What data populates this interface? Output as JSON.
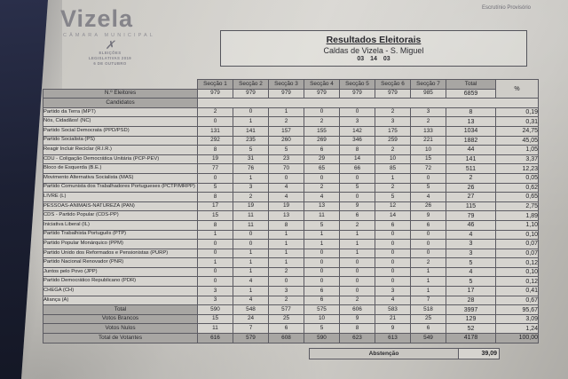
{
  "photo": {
    "corner_note": "Escrutínio Provisório"
  },
  "logo": {
    "name": "Vizela",
    "subtitle": "CÂMARA MUNICIPAL",
    "emblem_lines": [
      "ELEIÇÕES",
      "LEGISLATIVAS 2019",
      "6 DE OUTUBRO"
    ]
  },
  "icons": {
    "elections_emblem": "✗"
  },
  "header": {
    "title": "Resultados Eleitorais",
    "subtitle": "Caldas de Vizela - S. Miguel",
    "code": "03 14 03"
  },
  "table": {
    "columns": [
      "Secção 1",
      "Secção 2",
      "Secção 3",
      "Secção 4",
      "Secção 5",
      "Secção 6",
      "Secção 7",
      "Total",
      "%"
    ],
    "electors": {
      "label": "N.º Eleitores",
      "values": [
        "979",
        "979",
        "979",
        "979",
        "979",
        "979",
        "985"
      ],
      "total": "6859"
    },
    "candidates_label": "Candidatos",
    "parties": [
      {
        "label": "Partido da Terra (MPT)",
        "values": [
          "2",
          "0",
          "1",
          "0",
          "0",
          "2",
          "3"
        ],
        "total": "8",
        "pct": "0,19"
      },
      {
        "label": "Nós, Cidadãos! (NC)",
        "values": [
          "0",
          "1",
          "2",
          "2",
          "3",
          "3",
          "2"
        ],
        "total": "13",
        "pct": "0,31"
      },
      {
        "label": "Partido Social Democrata (PPD/PSD)",
        "values": [
          "131",
          "141",
          "157",
          "155",
          "142",
          "175",
          "133"
        ],
        "total": "1034",
        "pct": "24,75"
      },
      {
        "label": "Partido Socialista (PS)",
        "values": [
          "292",
          "235",
          "260",
          "269",
          "346",
          "259",
          "221"
        ],
        "total": "1882",
        "pct": "45,05"
      },
      {
        "label": "Reagir Incluir Reciclar (R.I.R.)",
        "values": [
          "8",
          "5",
          "5",
          "6",
          "8",
          "2",
          "10"
        ],
        "total": "44",
        "pct": "1,05"
      },
      {
        "label": "CDU - Coligação Democrática Unitária (PCP-PEV)",
        "values": [
          "19",
          "31",
          "23",
          "29",
          "14",
          "10",
          "15"
        ],
        "total": "141",
        "pct": "3,37"
      },
      {
        "label": "Bloco de Esquerda (B.E.)",
        "values": [
          "77",
          "76",
          "70",
          "65",
          "66",
          "85",
          "72"
        ],
        "total": "511",
        "pct": "12,23"
      },
      {
        "label": "Movimento Alternativa Socialista (MAS)",
        "values": [
          "0",
          "1",
          "0",
          "0",
          "0",
          "1",
          "0"
        ],
        "total": "2",
        "pct": "0,05"
      },
      {
        "label": "Partido Comunista dos Trabalhadores Portugueses (PCTP/MRPP)",
        "values": [
          "5",
          "3",
          "4",
          "2",
          "5",
          "2",
          "5"
        ],
        "total": "26",
        "pct": "0,62"
      },
      {
        "label": "LIVRE (L)",
        "values": [
          "8",
          "2",
          "4",
          "4",
          "0",
          "5",
          "4"
        ],
        "total": "27",
        "pct": "0,65"
      },
      {
        "label": "PESSOAS-ANIMAIS-NATUREZA (PAN)",
        "values": [
          "17",
          "19",
          "19",
          "13",
          "9",
          "12",
          "26"
        ],
        "total": "115",
        "pct": "2,75"
      },
      {
        "label": "CDS - Partido Popular (CDS-PP)",
        "values": [
          "15",
          "11",
          "13",
          "11",
          "6",
          "14",
          "9"
        ],
        "total": "79",
        "pct": "1,89"
      },
      {
        "label": "Iniciativa Liberal (IL)",
        "values": [
          "8",
          "11",
          "8",
          "5",
          "2",
          "6",
          "6"
        ],
        "total": "46",
        "pct": "1,10"
      },
      {
        "label": "Partido Trabalhista Português (PTP)",
        "values": [
          "1",
          "0",
          "1",
          "1",
          "1",
          "0",
          "0"
        ],
        "total": "4",
        "pct": "0,10"
      },
      {
        "label": "Partido Popular Monárquico (PPM)",
        "values": [
          "0",
          "0",
          "1",
          "1",
          "1",
          "0",
          "0"
        ],
        "total": "3",
        "pct": "0,07"
      },
      {
        "label": "Partido Unido dos Reformados e Pensionistas (PURP)",
        "values": [
          "0",
          "1",
          "1",
          "0",
          "1",
          "0",
          "0"
        ],
        "total": "3",
        "pct": "0,07"
      },
      {
        "label": "Partido Nacional Renovador (PNR)",
        "values": [
          "1",
          "1",
          "1",
          "0",
          "0",
          "0",
          "2"
        ],
        "total": "5",
        "pct": "0,12"
      },
      {
        "label": "Juntos pelo Povo (JPP)",
        "values": [
          "0",
          "1",
          "2",
          "0",
          "0",
          "0",
          "1"
        ],
        "total": "4",
        "pct": "0,10"
      },
      {
        "label": "Partido Democrático Republicano (PDR)",
        "values": [
          "0",
          "4",
          "0",
          "0",
          "0",
          "0",
          "1"
        ],
        "total": "5",
        "pct": "0,12"
      },
      {
        "label": "CHEGA (CH)",
        "values": [
          "3",
          "1",
          "3",
          "6",
          "0",
          "3",
          "1"
        ],
        "total": "17",
        "pct": "0,41"
      },
      {
        "label": "Aliança (A)",
        "values": [
          "3",
          "4",
          "2",
          "6",
          "2",
          "4",
          "7"
        ],
        "total": "28",
        "pct": "0,67"
      }
    ],
    "summary": [
      {
        "label": "Total",
        "values": [
          "590",
          "548",
          "577",
          "575",
          "606",
          "583",
          "518"
        ],
        "total": "3997",
        "pct": "95,67",
        "shaded_row": false
      },
      {
        "label": "Votos Brancos",
        "values": [
          "15",
          "24",
          "25",
          "10",
          "9",
          "21",
          "25"
        ],
        "total": "129",
        "pct": "3,09",
        "shaded_row": false
      },
      {
        "label": "Votos Nulos",
        "values": [
          "11",
          "7",
          "6",
          "5",
          "8",
          "9",
          "6"
        ],
        "total": "52",
        "pct": "1,24",
        "shaded_row": false
      },
      {
        "label": "Total de Votantes",
        "values": [
          "616",
          "579",
          "608",
          "590",
          "623",
          "613",
          "549"
        ],
        "total": "4178",
        "pct": "100,00",
        "shaded_row": true
      }
    ],
    "abstention": {
      "label": "Abstenção",
      "value": "39,09"
    }
  },
  "colors": {
    "paper": "#d6d4cf",
    "header_shade": "#a8a6a3",
    "ink": "#232327",
    "photo_background": "#1c2033"
  }
}
